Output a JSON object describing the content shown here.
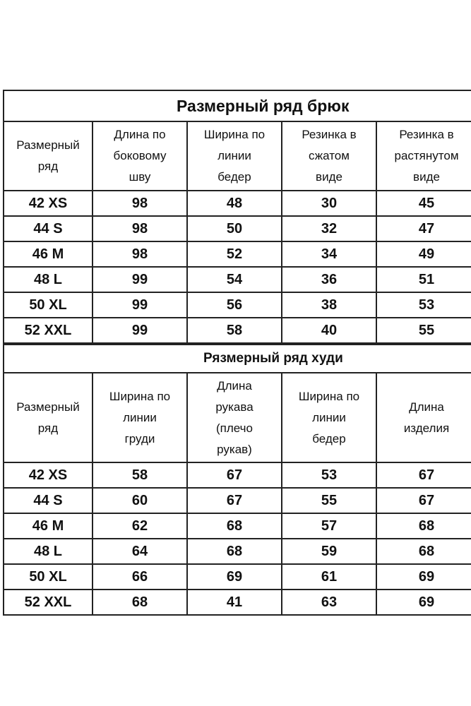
{
  "pants": {
    "title": "Размерный ряд брюк",
    "headers": [
      "Размерный\nряд",
      "Длина по\nбоковому\nшву",
      "Ширина по\nлинии\nбедер",
      "Резинка   в\nсжатом\nвиде",
      "Резинка в\nрастянутом\nвиде"
    ],
    "rows": [
      [
        "42 XS",
        "98",
        "48",
        "30",
        "45"
      ],
      [
        "44 S",
        "98",
        "50",
        "32",
        "47"
      ],
      [
        "46 M",
        "98",
        "52",
        "34",
        "49"
      ],
      [
        "48 L",
        "99",
        "54",
        "36",
        "51"
      ],
      [
        "50 XL",
        "99",
        "56",
        "38",
        "53"
      ],
      [
        "52 XXL",
        "99",
        "58",
        "40",
        "55"
      ]
    ]
  },
  "hoodie": {
    "title": "Рязмерный ряд худи",
    "headers": [
      "Размерный\nряд",
      "Ширина по\nлинии\nгруди",
      "Длина\nрукава\n(плечо\nрукав)",
      "Ширина по\nлинии\nбедер",
      "Длина\nизделия"
    ],
    "rows": [
      [
        "42 XS",
        "58",
        "67",
        "53",
        "67"
      ],
      [
        "44 S",
        "60",
        "67",
        "55",
        "67"
      ],
      [
        "46 M",
        "62",
        "68",
        "57",
        "68"
      ],
      [
        "48 L",
        "64",
        "68",
        "59",
        "68"
      ],
      [
        "50 XL",
        "66",
        "69",
        "61",
        "69"
      ],
      [
        "52 XXL",
        "68",
        "41",
        "63",
        "69"
      ]
    ]
  }
}
